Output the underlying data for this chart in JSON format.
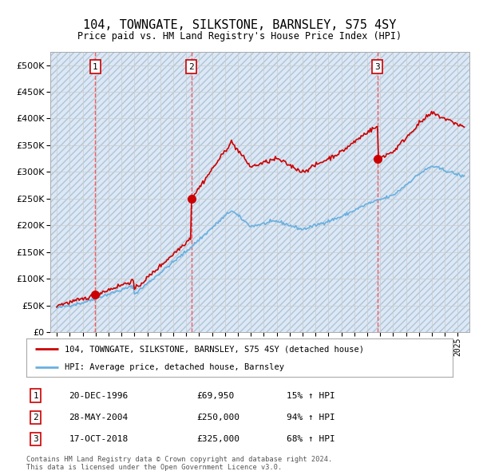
{
  "title": "104, TOWNGATE, SILKSTONE, BARNSLEY, S75 4SY",
  "subtitle": "Price paid vs. HM Land Registry's House Price Index (HPI)",
  "legend_entry1": "104, TOWNGATE, SILKSTONE, BARNSLEY, S75 4SY (detached house)",
  "legend_entry2": "HPI: Average price, detached house, Barnsley",
  "transactions": [
    {
      "num": 1,
      "date": "20-DEC-1996",
      "price": 69950,
      "pct": "15%",
      "dir": "↑",
      "year": 1996.97
    },
    {
      "num": 2,
      "date": "28-MAY-2004",
      "price": 250000,
      "pct": "94%",
      "dir": "↑",
      "year": 2004.41
    },
    {
      "num": 3,
      "date": "17-OCT-2018",
      "price": 325000,
      "pct": "68%",
      "dir": "↑",
      "year": 2018.79
    }
  ],
  "footer1": "Contains HM Land Registry data © Crown copyright and database right 2024.",
  "footer2": "This data is licensed under the Open Government Licence v3.0.",
  "hpi_color": "#6ab0e0",
  "price_color": "#cc0000",
  "dot_color": "#cc0000",
  "vline_color": "#ff4444",
  "grid_color": "#cccccc",
  "background_color": "#dce8f5",
  "ylim_max": 525000,
  "dot_prices": [
    69950,
    250000,
    325000
  ]
}
